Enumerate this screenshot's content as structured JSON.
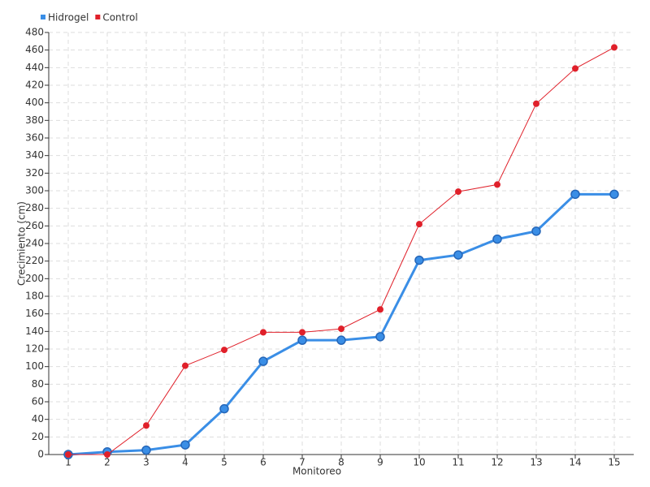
{
  "chart_data": {
    "type": "line",
    "x_label": "Monitoreo",
    "y_label": "Crecimiento (cm)",
    "categories": [
      "1",
      "2",
      "3",
      "4",
      "5",
      "6",
      "7",
      "8",
      "9",
      "10",
      "11",
      "12",
      "13",
      "14",
      "15"
    ],
    "series": [
      {
        "name": "Hidrogel",
        "color": "#3a8ee6",
        "values": [
          0,
          3,
          5,
          11,
          52,
          106,
          130,
          130,
          134,
          221,
          227,
          245,
          254,
          296,
          296
        ]
      },
      {
        "name": "Control",
        "color": "#e0202a",
        "values": [
          0,
          0,
          33,
          101,
          119,
          139,
          139,
          143,
          165,
          262,
          299,
          307,
          399,
          439,
          463
        ]
      }
    ],
    "ylim": [
      0,
      480
    ],
    "yticks": [
      0,
      20,
      40,
      60,
      80,
      100,
      120,
      140,
      160,
      180,
      200,
      220,
      240,
      260,
      280,
      300,
      320,
      340,
      360,
      380,
      400,
      420,
      440,
      460,
      480
    ],
    "grid": true,
    "legend": "top-left"
  }
}
